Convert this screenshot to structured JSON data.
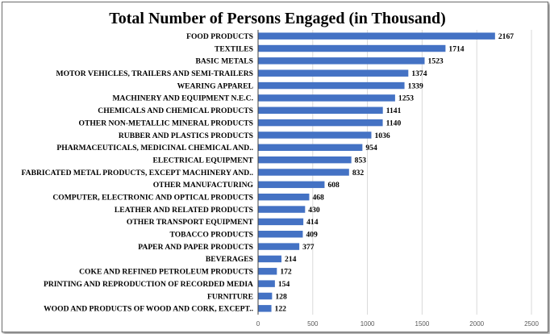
{
  "chart_data": {
    "type": "bar",
    "orientation": "horizontal",
    "title": "Total Number of Persons Engaged (in Thousand)",
    "xlabel": "",
    "ylabel": "",
    "xlim": [
      0,
      2500
    ],
    "xticks": [
      0,
      500,
      1000,
      1500,
      2000,
      2500
    ],
    "grid": true,
    "legend": "none",
    "bar_color": "#4472C4",
    "gridline_color": "#D9D9D9",
    "categories": [
      "FOOD PRODUCTS",
      "TEXTILES",
      "BASIC METALS",
      "MOTOR VEHICLES, TRAILERS AND SEMI-TRAILERS",
      "WEARING APPAREL",
      "MACHINERY AND EQUIPMENT N.E.C.",
      "CHEMICALS AND CHEMICAL PRODUCTS",
      "OTHER NON-METALLIC MINERAL PRODUCTS",
      "RUBBER AND PLASTICS PRODUCTS",
      "PHARMACEUTICALS, MEDICINAL CHEMICAL AND..",
      "ELECTRICAL EQUIPMENT",
      "FABRICATED METAL PRODUCTS, EXCEPT MACHINERY AND..",
      "OTHER MANUFACTURING",
      "COMPUTER, ELECTRONIC AND OPTICAL PRODUCTS",
      "LEATHER AND RELATED PRODUCTS",
      "OTHER TRANSPORT EQUIPMENT",
      "TOBACCO PRODUCTS",
      "PAPER AND PAPER PRODUCTS",
      "BEVERAGES",
      "COKE AND REFINED PETROLEUM PRODUCTS",
      "PRINTING AND REPRODUCTION OF RECORDED MEDIA",
      "FURNITURE",
      "WOOD AND PRODUCTS OF WOOD AND CORK, EXCEPT.."
    ],
    "values": [
      2167,
      1714,
      1523,
      1374,
      1339,
      1253,
      1141,
      1140,
      1036,
      954,
      853,
      832,
      608,
      468,
      430,
      414,
      409,
      377,
      214,
      172,
      154,
      128,
      122
    ]
  }
}
